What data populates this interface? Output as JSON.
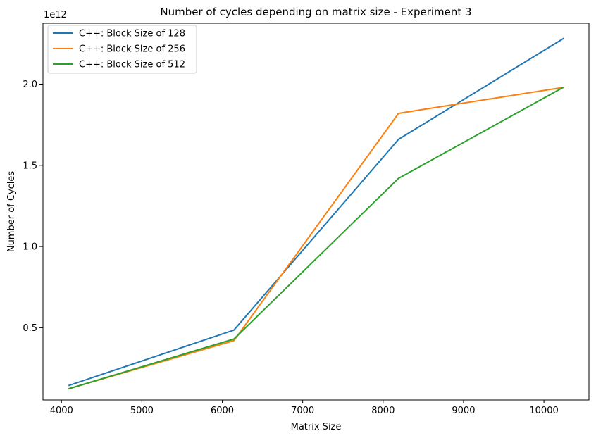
{
  "chart_data": {
    "type": "line",
    "title": "Number of cycles depending on matrix size - Experiment 3",
    "xlabel": "Matrix Size",
    "ylabel": "Number of Cycles",
    "y_offset_label": "1e12",
    "xlim": [
      3770,
      10560
    ],
    "ylim": [
      55000000000.0,
      2375000000000.0
    ],
    "x_ticks": [
      4000,
      5000,
      6000,
      7000,
      8000,
      9000,
      10000
    ],
    "x_tick_labels": [
      "4000",
      "5000",
      "6000",
      "7000",
      "8000",
      "9000",
      "10000"
    ],
    "y_ticks": [
      500000000000.0,
      1000000000000.0,
      1500000000000.0,
      2000000000000.0
    ],
    "y_tick_labels": [
      "0.5",
      "1.0",
      "1.5",
      "2.0"
    ],
    "grid": false,
    "legend_position": "top-left",
    "x": [
      4096,
      6144,
      8192,
      10240
    ],
    "series": [
      {
        "name": "C++: Block Size of 128",
        "color": "#1f77b4",
        "values": [
          145000000000.0,
          485000000000.0,
          1660000000000.0,
          2280000000000.0
        ]
      },
      {
        "name": "C++: Block Size of 256",
        "color": "#ff7f0e",
        "values": [
          125000000000.0,
          420000000000.0,
          1820000000000.0,
          1980000000000.0
        ]
      },
      {
        "name": "C++: Block Size of 512",
        "color": "#2ca02c",
        "values": [
          125000000000.0,
          430000000000.0,
          1420000000000.0,
          1980000000000.0
        ]
      }
    ]
  }
}
